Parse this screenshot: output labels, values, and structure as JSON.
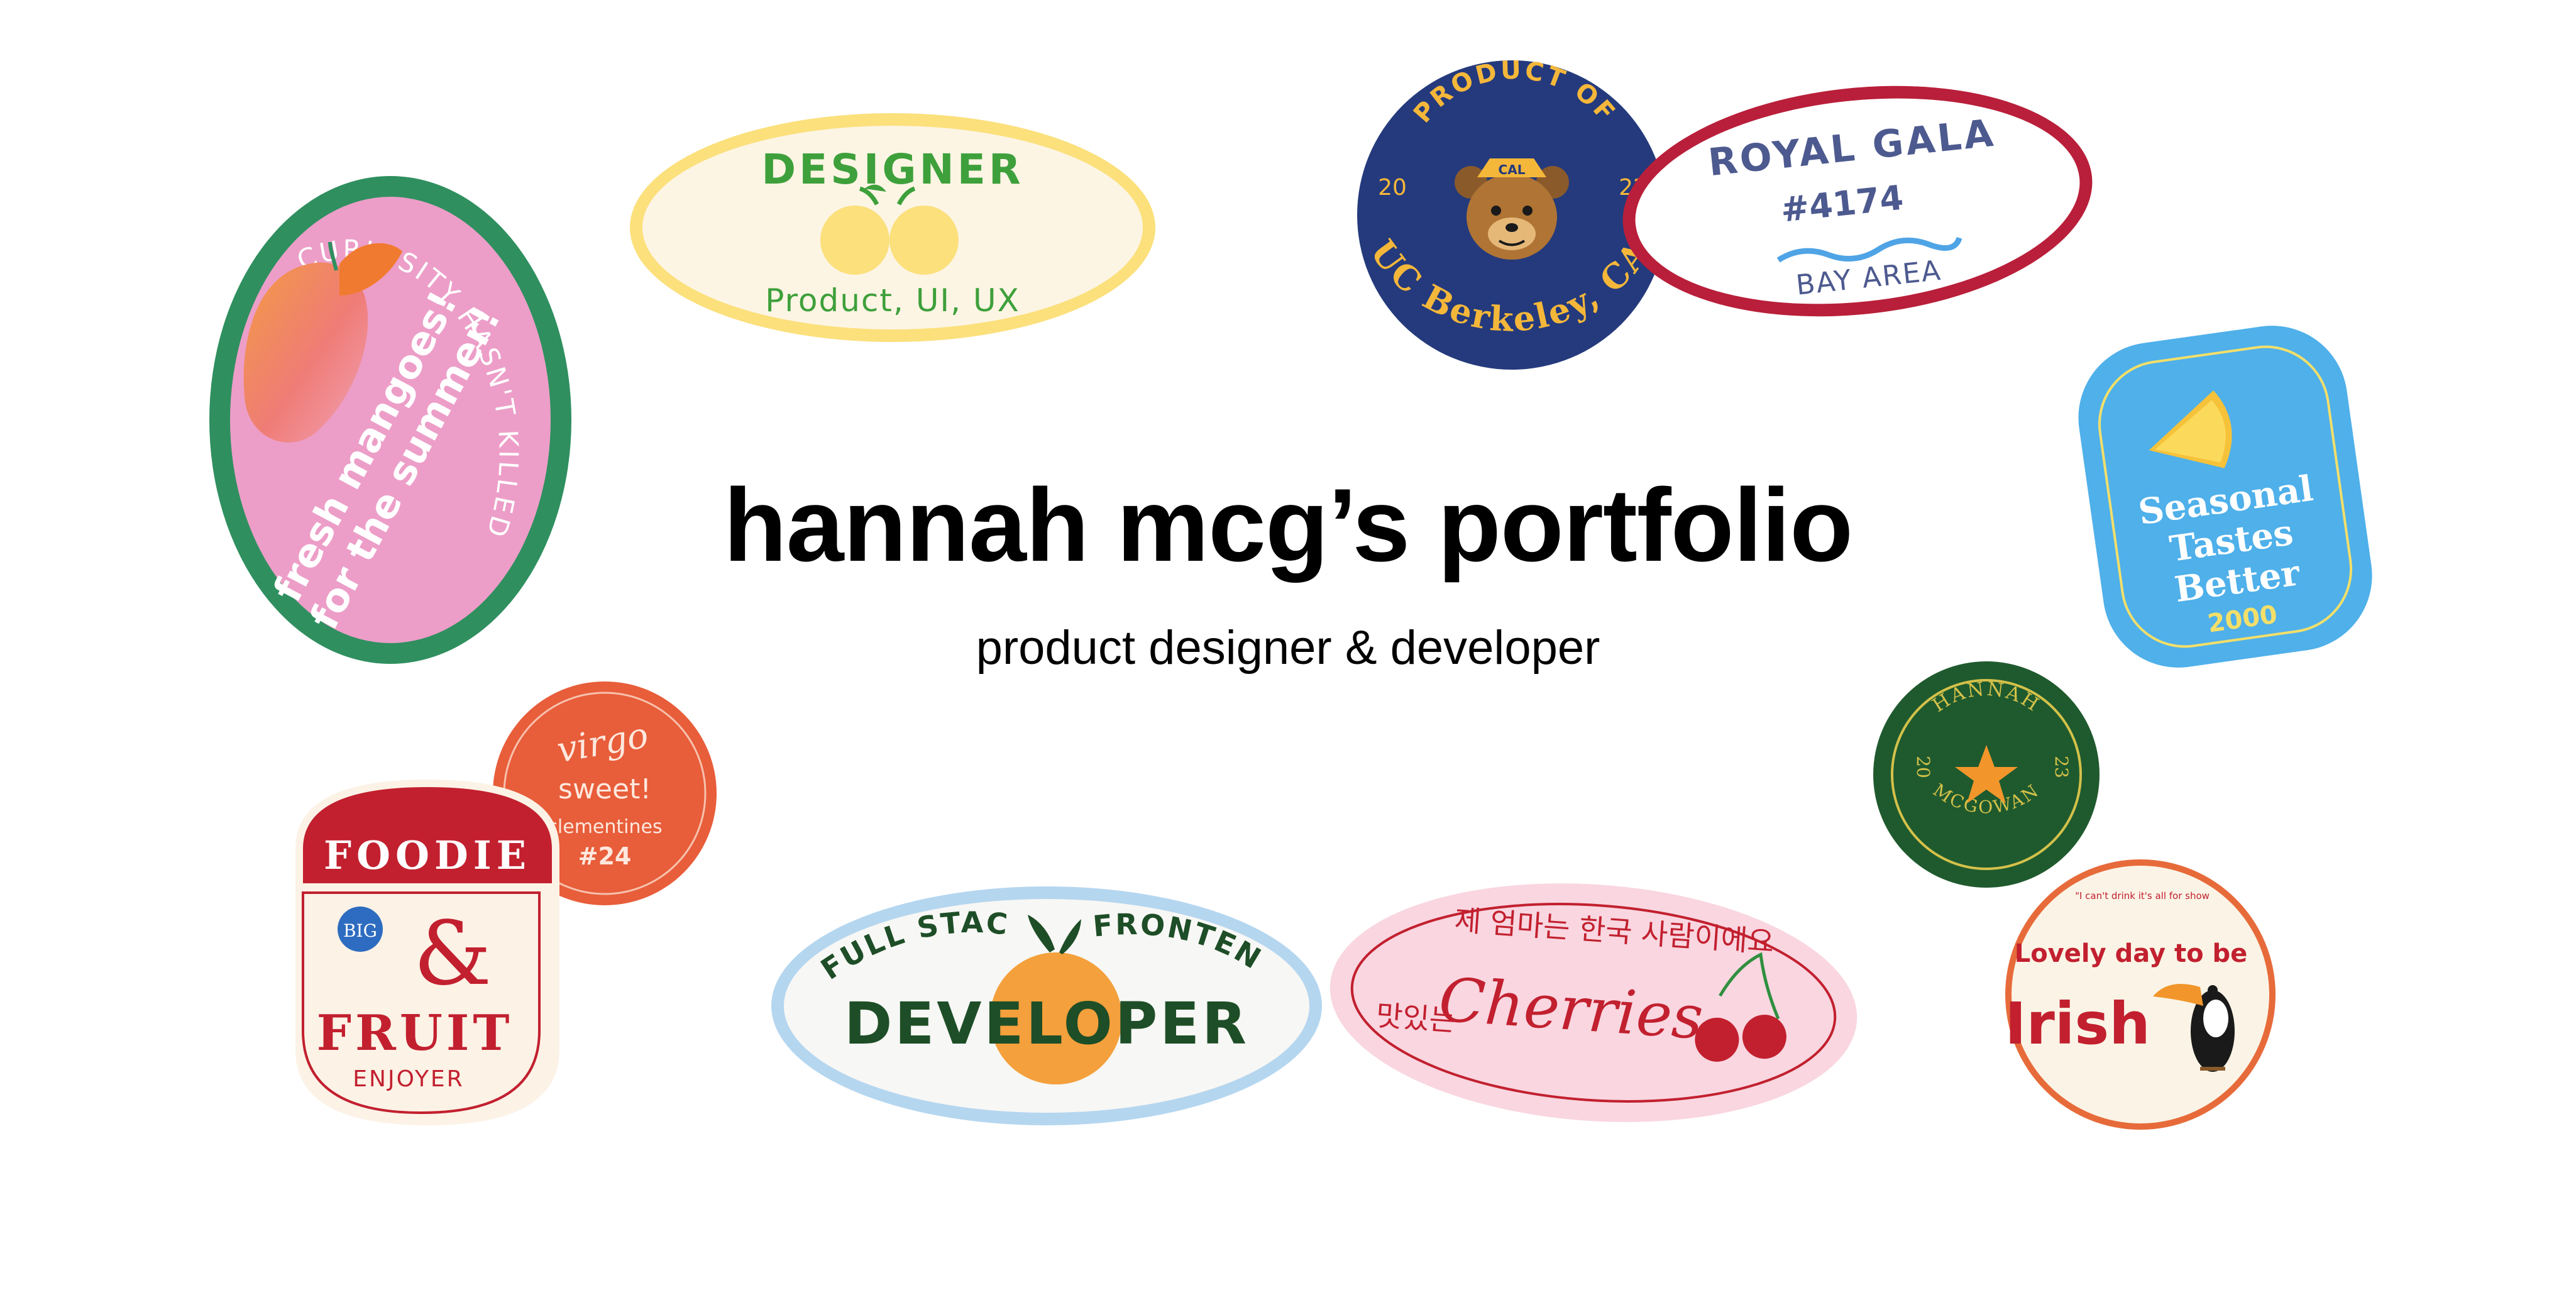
{
  "page": {
    "title": "hannah mcg’s portfolio",
    "subtitle": "product designer & developer"
  },
  "colors": {
    "mango_pink": "#ec9ec8",
    "mango_green": "#2f8f5f",
    "designer_yellow": "#fbe07c",
    "designer_green": "#3ea03b",
    "berkeley_navy": "#243a7c",
    "berkeley_gold": "#f5b73a",
    "gala_red": "#b91f3a",
    "gala_blue": "#4d5a8f",
    "seasonal_blue": "#4fb0ea",
    "hannah_green": "#1f5a2e",
    "virgo_orange": "#e85d3a",
    "foodie_red": "#c2202f",
    "developer_blue": "#b5d6ef",
    "developer_green": "#1e4e27",
    "cherries_pink": "#f9d6e0",
    "irish_orange": "#e76b3a"
  },
  "stickers": {
    "mango": {
      "ring_text": "CURIOSITY HASN'T KILLED ME YET",
      "line1": "fresh mangoes!",
      "line2": "for the summer!",
      "icon": "mango-icon"
    },
    "designer": {
      "title": "DESIGNER",
      "subtitle": "Product, UI, UX",
      "icon": "lemons-icon"
    },
    "berkeley": {
      "top_text": "PRODUCT OF",
      "bottom_text": "UC Berkeley, CA",
      "year_left": "20",
      "year_right": "22",
      "icon": "bear-mascot-icon",
      "hat_text": "CAL"
    },
    "gala": {
      "title": "ROYAL GALA",
      "code": "#4174",
      "area": "BAY AREA",
      "icon": "wave-icon"
    },
    "seasonal": {
      "line1": "Seasonal",
      "line2": "Tastes",
      "line3": "Better",
      "year": "2000",
      "icon": "orange-slice-icon"
    },
    "hannah": {
      "top_text": "HANNAH",
      "bottom_text": "MCGOWAN",
      "year_left": "20",
      "year_right": "23",
      "icon": "star-icon"
    },
    "virgo": {
      "line1": "virgo",
      "line2": "sweet!",
      "line3": "clementines",
      "line4": "#24"
    },
    "foodie": {
      "title": "FOODIE",
      "amp": "&",
      "fruit": "FRUIT",
      "badge": "BIG",
      "bottom": "ENJOYER"
    },
    "developer": {
      "left": "FULL STACK",
      "right": "FRONTEND",
      "title": "DEVELOPER",
      "icon": "orange-icon"
    },
    "cherries": {
      "korean_top": "제 엄마는 한국 사람이에요",
      "korean_left": "맛있는",
      "script": "Cherries",
      "icon": "cherries-icon"
    },
    "irish": {
      "small": "\"I can't drink it's all for show",
      "line1": "Lovely day to be",
      "line2": "Irish",
      "icon": "toucan-icon"
    }
  }
}
